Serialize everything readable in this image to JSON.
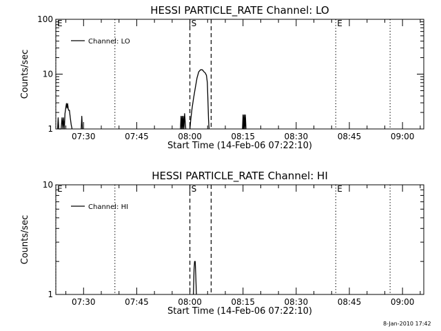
{
  "timestamp": "8-Jan-2010 17:42",
  "chart_data": [
    {
      "type": "line",
      "title": "HESSI PARTICLE_RATE Channel: LO",
      "xlabel": "Start Time (14-Feb-06 07:22:10)",
      "ylabel": "Counts/sec",
      "x_ticks": [
        "07:30",
        "07:45",
        "08:00",
        "08:15",
        "08:30",
        "08:45",
        "09:00"
      ],
      "y_ticks": [
        "1",
        "10",
        "100"
      ],
      "xlim": [
        "07:22:10",
        "09:06:00"
      ],
      "ylim": [
        1,
        100
      ],
      "y_scale": "log",
      "grid": false,
      "legend": {
        "position": "top-left",
        "entries": [
          "Channel: LO"
        ]
      },
      "annotations": [
        {
          "label": "E",
          "time": "07:22:10",
          "line": "dotted"
        },
        {
          "label": "",
          "time": "07:38:50",
          "line": "dotted"
        },
        {
          "label": "S",
          "time": "08:00:00",
          "line": "dashed"
        },
        {
          "label": "",
          "time": "08:06:00",
          "line": "dashed"
        },
        {
          "label": "E",
          "time": "08:41:10",
          "line": "dotted"
        },
        {
          "label": "",
          "time": "08:56:30",
          "line": "dotted"
        }
      ],
      "series": [
        {
          "name": "Channel: LO",
          "segments": [
            [
              [
                "07:22:40",
                1
              ],
              [
                "07:22:50",
                1.6
              ],
              [
                "07:23:00",
                1
              ],
              [
                "07:23:40",
                1
              ],
              [
                "07:23:55",
                1.6
              ],
              [
                "07:24:10",
                1
              ],
              [
                "07:24:20",
                1.6
              ],
              [
                "07:24:35",
                1
              ],
              [
                "07:24:45",
                1.9
              ],
              [
                "07:25:00",
                2.5
              ],
              [
                "07:25:10",
                2.9
              ],
              [
                "07:25:20",
                2.4
              ],
              [
                "07:25:30",
                2.9
              ],
              [
                "07:25:45",
                2.2
              ],
              [
                "07:26:00",
                2.2
              ],
              [
                "07:26:15",
                1.6
              ],
              [
                "07:26:30",
                1.2
              ],
              [
                "07:26:45",
                1
              ]
            ],
            [
              [
                "07:29:20",
                1
              ],
              [
                "07:29:30",
                1.7
              ],
              [
                "07:29:40",
                1
              ]
            ],
            [
              [
                "07:57:20",
                1
              ],
              [
                "07:57:30",
                1.7
              ],
              [
                "07:57:40",
                1
              ],
              [
                "07:57:50",
                1.7
              ],
              [
                "07:58:00",
                1
              ],
              [
                "07:58:10",
                1.7
              ],
              [
                "07:58:20",
                1
              ],
              [
                "07:58:30",
                1.9
              ],
              [
                "07:58:40",
                1.4
              ],
              [
                "07:58:50",
                1
              ]
            ],
            [
              [
                "08:00:00",
                1
              ],
              [
                "08:00:15",
                1.5
              ],
              [
                "08:00:35",
                2.3
              ],
              [
                "08:01:00",
                3.5
              ],
              [
                "08:01:30",
                5.5
              ],
              [
                "08:02:00",
                8.5
              ],
              [
                "08:02:30",
                11
              ],
              [
                "08:03:00",
                12
              ],
              [
                "08:03:30",
                12
              ],
              [
                "08:04:00",
                11
              ],
              [
                "08:04:20",
                10.5
              ],
              [
                "08:04:40",
                9.5
              ],
              [
                "08:04:55",
                7
              ],
              [
                "08:05:05",
                3.5
              ],
              [
                "08:05:15",
                1.5
              ],
              [
                "08:05:25",
                1
              ]
            ],
            [
              [
                "08:14:50",
                1
              ],
              [
                "08:15:00",
                1.8
              ],
              [
                "08:15:10",
                1
              ],
              [
                "08:15:20",
                1.8
              ],
              [
                "08:15:30",
                1
              ],
              [
                "08:15:40",
                1.8
              ],
              [
                "08:15:50",
                1
              ]
            ]
          ]
        }
      ]
    },
    {
      "type": "line",
      "title": "HESSI PARTICLE_RATE Channel: HI",
      "xlabel": "Start Time (14-Feb-06 07:22:10)",
      "ylabel": "Counts/sec",
      "x_ticks": [
        "07:30",
        "07:45",
        "08:00",
        "08:15",
        "08:30",
        "08:45",
        "09:00"
      ],
      "y_ticks": [
        "1",
        "10"
      ],
      "xlim": [
        "07:22:10",
        "09:06:00"
      ],
      "ylim": [
        1,
        10
      ],
      "y_scale": "log",
      "grid": false,
      "legend": {
        "position": "top-left",
        "entries": [
          "Channel: HI"
        ]
      },
      "annotations": [
        {
          "label": "E",
          "time": "07:22:10",
          "line": "dotted"
        },
        {
          "label": "",
          "time": "07:38:50",
          "line": "dotted"
        },
        {
          "label": "S",
          "time": "08:00:00",
          "line": "dashed"
        },
        {
          "label": "",
          "time": "08:06:00",
          "line": "dashed"
        },
        {
          "label": "E",
          "time": "08:41:10",
          "line": "dotted"
        },
        {
          "label": "",
          "time": "08:56:30",
          "line": "dotted"
        }
      ],
      "series": [
        {
          "name": "Channel: HI",
          "segments": [
            [
              [
                "08:01:00",
                1
              ],
              [
                "08:01:10",
                1.7
              ],
              [
                "08:01:20",
                2
              ],
              [
                "08:01:30",
                2
              ],
              [
                "08:01:40",
                1.5
              ],
              [
                "08:01:50",
                1
              ]
            ]
          ]
        }
      ]
    }
  ]
}
